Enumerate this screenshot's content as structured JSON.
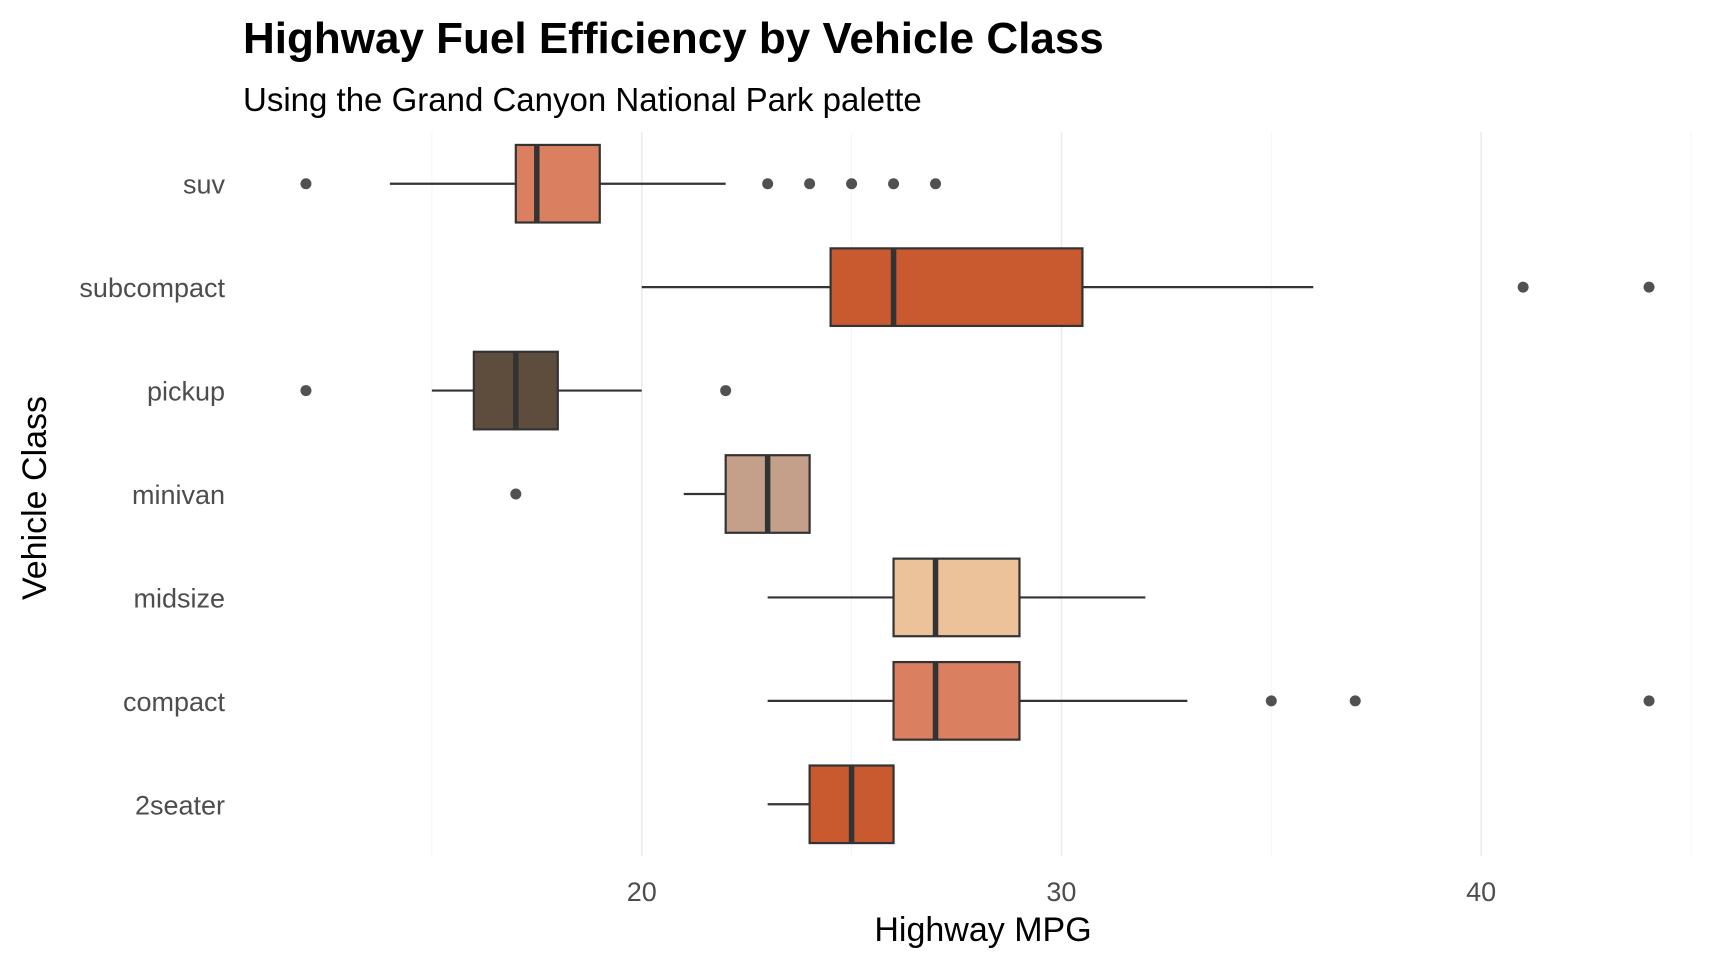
{
  "chart_data": {
    "type": "boxplot",
    "orientation": "horizontal",
    "title": "Highway Fuel Efficiency by Vehicle Class",
    "subtitle": "Using the Grand Canyon National Park palette",
    "xlabel": "Highway MPG",
    "ylabel": "Vehicle Class",
    "xlim": [
      10.5,
      45.5
    ],
    "xticks": [
      20,
      30,
      40
    ],
    "xtick_labels": [
      "20",
      "30",
      "40"
    ],
    "grid": true,
    "legend": "none",
    "categories": [
      "2seater",
      "compact",
      "midsize",
      "minivan",
      "pickup",
      "subcompact",
      "suv"
    ],
    "series": [
      {
        "name": "2seater",
        "color": "#C9592E",
        "whisker_low": 23,
        "q1": 24,
        "median": 25,
        "q3": 26,
        "whisker_high": 26,
        "outliers": []
      },
      {
        "name": "compact",
        "color": "#DA8061",
        "whisker_low": 23,
        "q1": 26,
        "median": 27,
        "q3": 29,
        "whisker_high": 33,
        "outliers": [
          35,
          37,
          44
        ]
      },
      {
        "name": "midsize",
        "color": "#EBC29A",
        "whisker_low": 23,
        "q1": 26,
        "median": 27,
        "q3": 29,
        "whisker_high": 32,
        "outliers": []
      },
      {
        "name": "minivan",
        "color": "#C4A08B",
        "whisker_low": 21,
        "q1": 22,
        "median": 23,
        "q3": 24,
        "whisker_high": 24,
        "outliers": [
          17
        ]
      },
      {
        "name": "pickup",
        "color": "#5E4D3D",
        "whisker_low": 15,
        "q1": 16,
        "median": 17,
        "q3": 18,
        "whisker_high": 20,
        "outliers": [
          12,
          22
        ]
      },
      {
        "name": "subcompact",
        "color": "#C9592E",
        "whisker_low": 20,
        "q1": 24.5,
        "median": 26,
        "q3": 30.5,
        "whisker_high": 36,
        "outliers": [
          41,
          44
        ]
      },
      {
        "name": "suv",
        "color": "#DA8061",
        "whisker_low": 14,
        "q1": 17,
        "median": 17.5,
        "q3": 19,
        "whisker_high": 22,
        "outliers": [
          12,
          23,
          24,
          25,
          26,
          27
        ]
      }
    ]
  }
}
